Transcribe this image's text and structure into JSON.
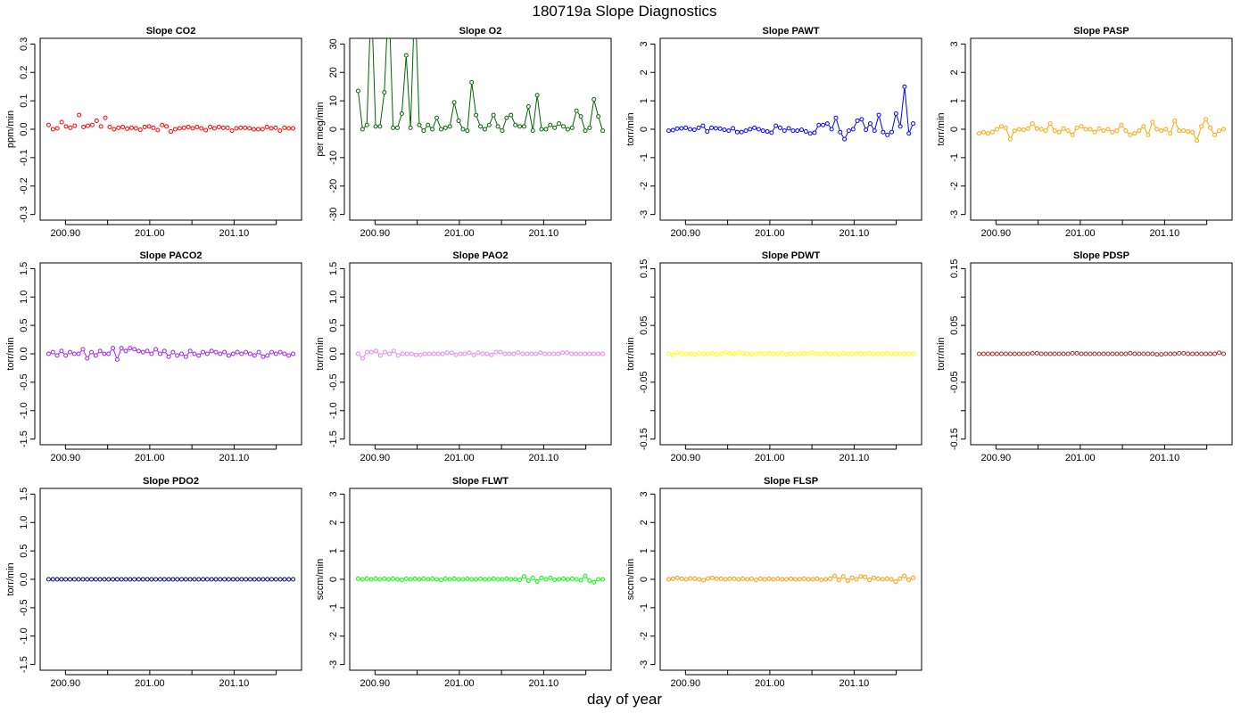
{
  "figure": {
    "title": "180719a   Slope Diagnostics",
    "xlabel": "day of year",
    "xlim": [
      200.87,
      201.18
    ],
    "xticks": [
      200.9,
      200.95,
      201.0,
      201.05,
      201.1,
      201.15
    ],
    "xtick_labels": [
      "200.90",
      "",
      "201.00",
      "",
      "201.10",
      ""
    ]
  },
  "chart_data": [
    {
      "type": "scatter",
      "title": "Slope CO2",
      "ylabel": "ppm/min",
      "color": "#ff0000",
      "lines": false,
      "ylim": [
        -0.32,
        0.32
      ],
      "yticks": [
        -0.3,
        -0.2,
        -0.1,
        0.0,
        0.1,
        0.2,
        0.3
      ],
      "ytick_labels": [
        "-0.3",
        "-0.2",
        "-0.1",
        "0.0",
        "0.1",
        "0.2",
        "0.3"
      ],
      "series": [
        {
          "values": [
            0.015,
            0.0,
            0.003,
            0.025,
            0.01,
            0.005,
            0.012,
            0.05,
            0.008,
            0.012,
            0.015,
            0.03,
            0.01,
            0.04,
            0.008,
            0.0,
            0.005,
            0.008,
            0.002,
            0.005,
            0.003,
            -0.002,
            0.008,
            0.01,
            0.005,
            -0.003,
            0.015,
            0.01,
            -0.008,
            0.0,
            0.003,
            0.005,
            0.008,
            0.003,
            0.008,
            0.003,
            -0.003,
            0.008,
            0.003,
            0.008,
            0.005,
            0.005,
            -0.005,
            0.003,
            0.005,
            0.005,
            0.003,
            0.0,
            0.0,
            0.0,
            0.008,
            0.003,
            0.005,
            -0.005,
            0.005,
            0.003,
            0.003
          ]
        }
      ]
    },
    {
      "type": "line",
      "title": "Slope O2",
      "ylabel": "per meg/min",
      "color": "#006400",
      "lines": true,
      "ylim": [
        -32,
        32
      ],
      "yticks": [
        -30,
        -20,
        -10,
        0,
        10,
        20,
        30
      ],
      "ytick_labels": [
        "-30",
        "-20",
        "-10",
        "0",
        "10",
        "20",
        "30"
      ],
      "series": [
        {
          "values": [
            13.5,
            0,
            1.5,
            48,
            1,
            1,
            13,
            48,
            0.5,
            0.5,
            5.5,
            26,
            0.5,
            48,
            1.5,
            -0.5,
            1.5,
            0,
            4,
            0,
            0.5,
            1,
            9.5,
            3,
            0,
            -0.5,
            16.5,
            5,
            1,
            0,
            1.5,
            5,
            1,
            -0.5,
            4,
            5,
            1.5,
            1,
            1,
            8,
            -0.5,
            12,
            0,
            0,
            1.5,
            0.5,
            2,
            1,
            0,
            0.5,
            6.5,
            4.5,
            -0.5,
            0.5,
            10.5,
            4.5,
            -0.5
          ]
        }
      ]
    },
    {
      "type": "line",
      "title": "Slope PAWT",
      "ylabel": "torr/min",
      "color": "#0000ff",
      "lines": true,
      "ylim": [
        -3.2,
        3.2
      ],
      "yticks": [
        -3,
        -2,
        -1,
        0,
        1,
        2,
        3
      ],
      "ytick_labels": [
        "-3",
        "-2",
        "-1",
        "0",
        "1",
        "2",
        "3"
      ],
      "series": [
        {
          "values": [
            -0.05,
            -0.03,
            0.02,
            0.03,
            0.05,
            0.0,
            -0.02,
            0.05,
            0.12,
            -0.08,
            0.05,
            0.03,
            0.02,
            -0.02,
            -0.05,
            0.03,
            -0.1,
            -0.1,
            -0.05,
            0.0,
            0.05,
            0.0,
            -0.05,
            -0.08,
            -0.12,
            0.12,
            0.05,
            -0.05,
            0.03,
            -0.05,
            -0.05,
            -0.02,
            -0.08,
            -0.15,
            -0.12,
            0.15,
            0.15,
            0.2,
            0.0,
            0.4,
            -0.1,
            -0.35,
            -0.05,
            0.0,
            0.3,
            0.35,
            -0.02,
            0.2,
            -0.05,
            0.5,
            -0.1,
            -0.2,
            -0.1,
            0.55,
            0.1,
            1.5,
            -0.15,
            0.2
          ]
        }
      ]
    },
    {
      "type": "line",
      "title": "Slope PASP",
      "ylabel": "torr/min",
      "color": "#ffa500",
      "lines": true,
      "ylim": [
        -3.2,
        3.2
      ],
      "yticks": [
        -3,
        -2,
        -1,
        0,
        1,
        2,
        3
      ],
      "ytick_labels": [
        "-3",
        "-2",
        "-1",
        "0",
        "1",
        "2",
        "3"
      ],
      "series": [
        {
          "values": [
            -0.15,
            -0.1,
            -0.15,
            -0.1,
            0.0,
            0.1,
            0.05,
            -0.35,
            -0.05,
            0.0,
            -0.02,
            0.02,
            0.2,
            0.02,
            0.0,
            -0.05,
            0.2,
            -0.05,
            -0.1,
            0.02,
            -0.05,
            -0.2,
            0.05,
            0.1,
            0.0,
            0.0,
            -0.1,
            0.02,
            -0.05,
            0.0,
            -0.1,
            -0.05,
            0.15,
            -0.05,
            -0.2,
            -0.15,
            -0.05,
            0.1,
            -0.2,
            0.25,
            0.0,
            -0.05,
            0.0,
            -0.15,
            0.3,
            -0.05,
            -0.05,
            -0.08,
            -0.1,
            -0.4,
            0.1,
            0.35,
            0.05,
            -0.2,
            -0.05,
            0.0
          ]
        }
      ]
    },
    {
      "type": "line",
      "title": "Slope PACO2",
      "ylabel": "torr/min",
      "color": "#a020f0",
      "lines": true,
      "ylim": [
        -1.6,
        1.6
      ],
      "yticks": [
        -1.5,
        -1.0,
        -0.5,
        0.0,
        0.5,
        1.0,
        1.5
      ],
      "ytick_labels": [
        "-1.5",
        "-1.0",
        "-0.5",
        "0.0",
        "0.5",
        "1.0",
        "1.5"
      ],
      "series": [
        {
          "values": [
            0.0,
            0.03,
            -0.03,
            0.05,
            -0.03,
            0.03,
            0.0,
            0.0,
            0.08,
            -0.08,
            0.03,
            -0.03,
            0.05,
            0.0,
            0.0,
            0.1,
            -0.1,
            0.1,
            0.05,
            0.1,
            0.08,
            0.05,
            0.03,
            0.05,
            0.0,
            0.08,
            0.0,
            0.05,
            -0.05,
            0.03,
            -0.03,
            0.0,
            -0.05,
            0.05,
            0.0,
            -0.03,
            0.03,
            0.0,
            0.05,
            0.03,
            0.0,
            0.03,
            -0.03,
            0.0,
            0.03,
            0.0,
            0.03,
            0.0,
            -0.03,
            0.03,
            -0.05,
            -0.03,
            0.03,
            0.0,
            0.03,
            0.0,
            -0.03,
            0.0
          ]
        }
      ]
    },
    {
      "type": "line",
      "title": "Slope PAO2",
      "ylabel": "torr/min",
      "color": "#ee82ee",
      "lines": true,
      "ylim": [
        -1.6,
        1.6
      ],
      "yticks": [
        -1.5,
        -1.0,
        -0.5,
        0.0,
        0.5,
        1.0,
        1.5
      ],
      "ytick_labels": [
        "-1.5",
        "-1.0",
        "-0.5",
        "0.0",
        "0.5",
        "1.0",
        "1.5"
      ],
      "series": [
        {
          "values": [
            0.0,
            -0.08,
            0.03,
            0.03,
            0.05,
            -0.03,
            0.03,
            0.0,
            0.05,
            -0.03,
            0.0,
            0.0,
            0.0,
            -0.02,
            -0.02,
            0.0,
            0.0,
            0.0,
            0.0,
            0.0,
            0.02,
            0.02,
            -0.02,
            0.0,
            0.0,
            0.02,
            -0.02,
            0.02,
            0.0,
            0.0,
            -0.02,
            0.03,
            0.03,
            0.0,
            0.0,
            0.0,
            0.02,
            0.0,
            0.0,
            0.0,
            0.0,
            0.02,
            0.0,
            0.0,
            0.0,
            0.0,
            0.02,
            0.02,
            0.0,
            0.0,
            0.0,
            0.0,
            0.0,
            0.0,
            0.0,
            0.0
          ]
        }
      ]
    },
    {
      "type": "line",
      "title": "Slope PDWT",
      "ylabel": "torr/min",
      "color": "#ffff00",
      "lines": true,
      "ylim": [
        -0.16,
        0.16
      ],
      "yticks": [
        -0.15,
        -0.1,
        -0.05,
        0.0,
        0.05,
        0.1,
        0.15
      ],
      "ytick_labels": [
        "-0.15",
        "",
        "-0.05",
        "",
        "0.05",
        "",
        "0.15"
      ],
      "series": [
        {
          "values": [
            0.0,
            -0.002,
            0.002,
            0.0,
            0.0,
            0.0,
            -0.001,
            0.001,
            0.0,
            0.0,
            0.001,
            -0.001,
            0.0,
            0.002,
            0.001,
            0.0,
            0.002,
            0.001,
            0.0,
            -0.001,
            0.0,
            0.001,
            0.0,
            0.001,
            0.0,
            0.0,
            0.001,
            -0.001,
            0.0,
            0.0,
            0.0,
            0.001,
            0.0,
            0.002,
            0.0,
            0.0,
            0.001,
            0.0,
            0.0,
            -0.001,
            0.001,
            0.0,
            0.0,
            0.001,
            0.0,
            0.0,
            0.001,
            0.0,
            0.0,
            0.0,
            0.001,
            0.0,
            0.0,
            0.0,
            0.0,
            0.0,
            0.0
          ]
        }
      ]
    },
    {
      "type": "line",
      "title": "Slope PDSP",
      "ylabel": "torr/min",
      "color": "#a52a2a",
      "lines": true,
      "ylim": [
        -0.16,
        0.16
      ],
      "yticks": [
        -0.15,
        -0.1,
        -0.05,
        0.0,
        0.05,
        0.1,
        0.15
      ],
      "ytick_labels": [
        "-0.15",
        "",
        "-0.05",
        "",
        "0.05",
        "",
        "0.15"
      ],
      "series": [
        {
          "values": [
            0.0,
            0.0,
            0.0,
            0.0,
            0.0,
            0.0,
            0.0,
            0.0,
            0.0,
            0.0,
            0.0,
            0.0,
            0.001,
            0.001,
            0.0,
            0.0,
            0.0,
            0.0,
            0.0,
            0.0,
            0.0,
            0.001,
            0.001,
            0.0,
            0.0,
            0.0,
            0.0,
            0.0,
            0.0,
            0.0,
            0.0,
            0.0,
            0.0,
            0.0,
            0.001,
            0.0,
            0.0,
            0.0,
            0.0,
            0.0,
            -0.001,
            -0.001,
            0.0,
            0.0,
            0.0,
            0.001,
            0.001,
            0.0,
            0.0,
            0.0,
            0.0,
            0.0,
            0.0,
            0.0,
            0.002,
            0.0
          ]
        }
      ]
    },
    {
      "type": "line",
      "title": "Slope PDO2",
      "ylabel": "torr/min",
      "color": "#000080",
      "lines": true,
      "ylim": [
        -1.6,
        1.6
      ],
      "yticks": [
        -1.5,
        -1.0,
        -0.5,
        0.0,
        0.5,
        1.0,
        1.5
      ],
      "ytick_labels": [
        "-1.5",
        "-1.0",
        "-0.5",
        "0.0",
        "0.5",
        "1.0",
        "1.5"
      ],
      "series": [
        {
          "values": [
            0,
            0,
            0,
            0,
            0,
            0,
            0,
            0,
            0,
            0,
            0,
            0,
            0,
            0,
            0,
            0,
            0,
            0,
            0,
            0,
            0,
            0,
            0,
            0,
            0,
            0,
            0,
            0,
            0,
            0,
            0,
            0,
            0,
            0,
            0,
            0,
            0,
            0,
            0,
            0,
            0,
            0,
            0,
            0,
            0,
            0,
            0,
            0,
            0,
            0,
            0,
            0,
            0,
            0,
            0,
            0,
            0,
            0
          ]
        }
      ]
    },
    {
      "type": "line",
      "title": "Slope FLWT",
      "ylabel": "sccm/min",
      "color": "#00ff00",
      "lines": true,
      "ylim": [
        -3.2,
        3.2
      ],
      "yticks": [
        -3,
        -2,
        -1,
        0,
        1,
        2,
        3
      ],
      "ytick_labels": [
        "-3",
        "-2",
        "-1",
        "0",
        "1",
        "2",
        "3"
      ],
      "series": [
        {
          "values": [
            0.02,
            0.0,
            0.02,
            0.0,
            0.02,
            0.0,
            0.02,
            0.0,
            0.02,
            0.0,
            -0.02,
            0.02,
            0.0,
            0.02,
            0.0,
            0.02,
            0.0,
            0.02,
            0.0,
            -0.02,
            0.02,
            0.0,
            0.02,
            0.0,
            0.0,
            0.02,
            0.0,
            0.0,
            0.02,
            0.0,
            0.0,
            0.02,
            0.0,
            0.0,
            0.02,
            0.0,
            0.0,
            -0.02,
            0.1,
            -0.05,
            0.05,
            -0.08,
            0.05,
            0.0,
            0.05,
            -0.02,
            0.0,
            0.02,
            0.0,
            0.02,
            0.0,
            -0.03,
            0.12,
            -0.05,
            -0.1,
            0.0,
            0.0
          ]
        }
      ]
    },
    {
      "type": "line",
      "title": "Slope FLSP",
      "ylabel": "sccm/min",
      "color": "#ff9900",
      "lines": true,
      "ylim": [
        -3.2,
        3.2
      ],
      "yticks": [
        -3,
        -2,
        -1,
        0,
        1,
        2,
        3
      ],
      "ytick_labels": [
        "-3",
        "-2",
        "-1",
        "0",
        "1",
        "2",
        "3"
      ],
      "series": [
        {
          "values": [
            0.0,
            0.02,
            0.05,
            0.02,
            0.0,
            0.03,
            0.02,
            0.0,
            -0.03,
            0.03,
            0.05,
            0.02,
            0.02,
            0.0,
            0.02,
            0.02,
            0.0,
            0.02,
            0.0,
            0.02,
            -0.02,
            0.02,
            0.0,
            0.02,
            0.0,
            0.02,
            0.0,
            0.0,
            0.02,
            0.0,
            0.0,
            0.02,
            0.0,
            0.0,
            0.02,
            -0.02,
            0.0,
            0.02,
            0.12,
            -0.02,
            0.1,
            -0.05,
            0.05,
            0.0,
            0.1,
            0.08,
            -0.02,
            0.05,
            0.02,
            0.0,
            0.02,
            0.0,
            -0.08,
            0.02,
            0.12,
            -0.02,
            0.05
          ]
        }
      ]
    }
  ]
}
